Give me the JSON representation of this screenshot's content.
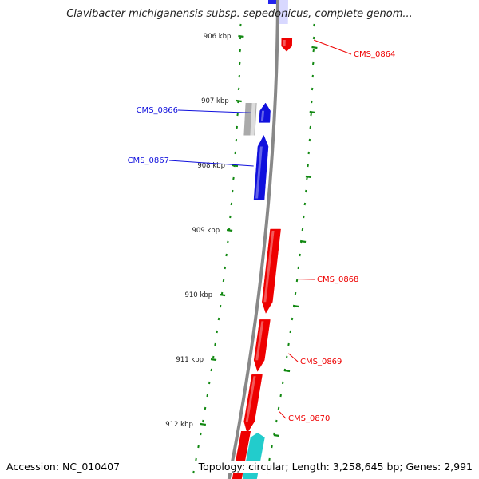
{
  "title": "Clavibacter michiganensis subsp. sepedonicus, complete genom...",
  "footer": {
    "accession": "Accession: NC_010407",
    "summary": "Topology: circular; Length: 3,258,645 bp; Genes: 2,991"
  },
  "colors": {
    "forward": "#ee0000",
    "reverse": "#1010dd",
    "other": "#aaaaaa",
    "rna": "#22cccc",
    "tick": "#118811",
    "backbone": "#888888"
  },
  "ticks": [
    {
      "label": "906 kbp"
    },
    {
      "label": "907 kbp"
    },
    {
      "label": "908 kbp"
    },
    {
      "label": "909 kbp"
    },
    {
      "label": "910 kbp"
    },
    {
      "label": "911 kbp"
    },
    {
      "label": "912 kbp"
    }
  ],
  "genes": [
    {
      "name": "CMS_0864",
      "strand": "forward",
      "start_kbp": 906.05,
      "end_kbp": 906.25,
      "color": "#ee0000"
    },
    {
      "name": "CMS_0866",
      "strand": "reverse",
      "start_kbp": 907.05,
      "end_kbp": 907.35,
      "color": "#1010dd"
    },
    {
      "name": "CMS_0867",
      "strand": "reverse",
      "start_kbp": 907.55,
      "end_kbp": 908.55,
      "color": "#1010dd"
    },
    {
      "name": "CMS_0868",
      "strand": "forward",
      "start_kbp": 909.0,
      "end_kbp": 910.3,
      "color": "#ee0000"
    },
    {
      "name": "CMS_0869",
      "strand": "forward",
      "start_kbp": 910.4,
      "end_kbp": 911.2,
      "color": "#ee0000"
    },
    {
      "name": "CMS_0870",
      "strand": "forward",
      "start_kbp": 911.25,
      "end_kbp": 912.15,
      "color": "#ee0000"
    }
  ]
}
